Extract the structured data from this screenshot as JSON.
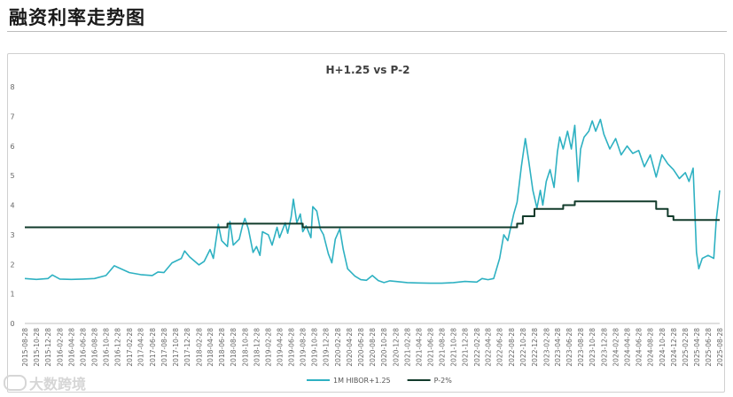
{
  "page": {
    "title": "融资利率走势图"
  },
  "watermark": {
    "text": "大数跨境"
  },
  "chart_data": {
    "type": "line",
    "title": "H+1.25 vs P-2",
    "xlabel": "",
    "ylabel": "",
    "ylim": [
      0,
      8
    ],
    "yticks": [
      0,
      1,
      2,
      3,
      4,
      5,
      6,
      7,
      8
    ],
    "grid": false,
    "legend_position": "bottom-center",
    "x_tick_labels": [
      "2015-08-28",
      "2015-10-28",
      "2015-12-28",
      "2016-02-28",
      "2016-04-28",
      "2016-06-28",
      "2016-08-28",
      "2016-10-28",
      "2016-12-28",
      "2017-02-28",
      "2017-04-28",
      "2017-06-28",
      "2017-08-28",
      "2017-10-28",
      "2017-12-28",
      "2018-02-28",
      "2018-04-28",
      "2018-06-28",
      "2018-08-28",
      "2018-10-28",
      "2018-12-28",
      "2019-02-28",
      "2019-04-28",
      "2019-06-28",
      "2019-08-28",
      "2019-10-28",
      "2019-12-28",
      "2020-02-28",
      "2020-04-28",
      "2020-06-28",
      "2020-08-28",
      "2020-10-28",
      "2020-12-28",
      "2021-02-28",
      "2021-04-28",
      "2021-06-28",
      "2021-08-28",
      "2021-10-28",
      "2021-12-28",
      "2022-02-28",
      "2022-04-28",
      "2022-06-28",
      "2022-08-28",
      "2022-10-28",
      "2022-12-28",
      "2023-02-28",
      "2023-04-28",
      "2023-06-28",
      "2023-08-28",
      "2023-10-28",
      "2023-12-28",
      "2024-02-28",
      "2024-04-28",
      "2024-06-28",
      "2024-08-28",
      "2024-10-28",
      "2024-12-28",
      "2025-02-28",
      "2025-04-28",
      "2025-06-28",
      "2025-08-28"
    ],
    "series": [
      {
        "name": "1M HIBOR+1.25",
        "color": "#2eb1c2",
        "points": [
          [
            "2015-08-28",
            1.52
          ],
          [
            "2015-10-28",
            1.49
          ],
          [
            "2015-12-28",
            1.52
          ],
          [
            "2016-01-20",
            1.64
          ],
          [
            "2016-02-28",
            1.5
          ],
          [
            "2016-04-28",
            1.49
          ],
          [
            "2016-06-28",
            1.5
          ],
          [
            "2016-08-28",
            1.52
          ],
          [
            "2016-10-28",
            1.62
          ],
          [
            "2016-12-10",
            1.95
          ],
          [
            "2016-12-28",
            1.9
          ],
          [
            "2017-02-28",
            1.72
          ],
          [
            "2017-04-28",
            1.65
          ],
          [
            "2017-06-28",
            1.62
          ],
          [
            "2017-07-28",
            1.74
          ],
          [
            "2017-08-28",
            1.72
          ],
          [
            "2017-10-10",
            2.05
          ],
          [
            "2017-11-28",
            2.2
          ],
          [
            "2017-12-15",
            2.45
          ],
          [
            "2018-01-10",
            2.25
          ],
          [
            "2018-02-28",
            1.98
          ],
          [
            "2018-03-28",
            2.1
          ],
          [
            "2018-04-28",
            2.5
          ],
          [
            "2018-05-15",
            2.2
          ],
          [
            "2018-06-10",
            3.35
          ],
          [
            "2018-06-28",
            2.8
          ],
          [
            "2018-07-28",
            2.6
          ],
          [
            "2018-08-10",
            3.45
          ],
          [
            "2018-08-28",
            2.65
          ],
          [
            "2018-09-28",
            2.85
          ],
          [
            "2018-10-15",
            3.3
          ],
          [
            "2018-10-28",
            3.55
          ],
          [
            "2018-11-15",
            3.2
          ],
          [
            "2018-12-10",
            2.4
          ],
          [
            "2018-12-28",
            2.6
          ],
          [
            "2019-01-15",
            2.3
          ],
          [
            "2019-01-28",
            3.1
          ],
          [
            "2019-02-28",
            3.0
          ],
          [
            "2019-03-20",
            2.65
          ],
          [
            "2019-04-15",
            3.25
          ],
          [
            "2019-04-28",
            2.9
          ],
          [
            "2019-05-28",
            3.4
          ],
          [
            "2019-06-10",
            3.05
          ],
          [
            "2019-06-28",
            3.6
          ],
          [
            "2019-07-10",
            4.2
          ],
          [
            "2019-07-28",
            3.4
          ],
          [
            "2019-08-15",
            3.7
          ],
          [
            "2019-08-28",
            3.1
          ],
          [
            "2019-09-15",
            3.3
          ],
          [
            "2019-10-10",
            2.9
          ],
          [
            "2019-10-20",
            3.95
          ],
          [
            "2019-11-10",
            3.8
          ],
          [
            "2019-11-28",
            3.2
          ],
          [
            "2019-12-15",
            3.0
          ],
          [
            "2020-01-10",
            2.35
          ],
          [
            "2020-01-28",
            2.05
          ],
          [
            "2020-02-15",
            2.85
          ],
          [
            "2020-03-10",
            3.2
          ],
          [
            "2020-03-28",
            2.5
          ],
          [
            "2020-04-20",
            1.85
          ],
          [
            "2020-05-28",
            1.6
          ],
          [
            "2020-06-28",
            1.48
          ],
          [
            "2020-07-28",
            1.46
          ],
          [
            "2020-08-28",
            1.62
          ],
          [
            "2020-09-28",
            1.45
          ],
          [
            "2020-10-28",
            1.38
          ],
          [
            "2020-11-28",
            1.44
          ],
          [
            "2020-12-28",
            1.42
          ],
          [
            "2021-02-28",
            1.38
          ],
          [
            "2021-04-28",
            1.37
          ],
          [
            "2021-06-28",
            1.36
          ],
          [
            "2021-08-28",
            1.36
          ],
          [
            "2021-10-28",
            1.38
          ],
          [
            "2021-12-28",
            1.42
          ],
          [
            "2022-02-28",
            1.4
          ],
          [
            "2022-03-28",
            1.52
          ],
          [
            "2022-04-28",
            1.48
          ],
          [
            "2022-05-28",
            1.52
          ],
          [
            "2022-06-28",
            2.2
          ],
          [
            "2022-07-20",
            3.0
          ],
          [
            "2022-08-10",
            2.8
          ],
          [
            "2022-09-10",
            3.7
          ],
          [
            "2022-09-28",
            4.1
          ],
          [
            "2022-10-20",
            5.3
          ],
          [
            "2022-11-10",
            6.25
          ],
          [
            "2022-11-28",
            5.5
          ],
          [
            "2022-12-20",
            4.5
          ],
          [
            "2023-01-10",
            3.9
          ],
          [
            "2023-01-28",
            4.5
          ],
          [
            "2023-02-10",
            4.0
          ],
          [
            "2023-02-28",
            4.8
          ],
          [
            "2023-03-20",
            5.2
          ],
          [
            "2023-04-10",
            4.6
          ],
          [
            "2023-04-28",
            5.8
          ],
          [
            "2023-05-10",
            6.3
          ],
          [
            "2023-05-28",
            5.9
          ],
          [
            "2023-06-20",
            6.5
          ],
          [
            "2023-07-10",
            5.9
          ],
          [
            "2023-07-28",
            6.7
          ],
          [
            "2023-08-15",
            4.8
          ],
          [
            "2023-08-28",
            5.9
          ],
          [
            "2023-09-15",
            6.3
          ],
          [
            "2023-10-10",
            6.5
          ],
          [
            "2023-10-28",
            6.85
          ],
          [
            "2023-11-15",
            6.5
          ],
          [
            "2023-12-10",
            6.9
          ],
          [
            "2023-12-28",
            6.4
          ],
          [
            "2024-01-28",
            5.9
          ],
          [
            "2024-02-28",
            6.25
          ],
          [
            "2024-03-28",
            5.7
          ],
          [
            "2024-04-28",
            6.0
          ],
          [
            "2024-05-28",
            5.75
          ],
          [
            "2024-06-28",
            5.85
          ],
          [
            "2024-07-28",
            5.3
          ],
          [
            "2024-08-28",
            5.7
          ],
          [
            "2024-09-28",
            4.95
          ],
          [
            "2024-10-28",
            5.7
          ],
          [
            "2024-11-28",
            5.4
          ],
          [
            "2024-12-28",
            5.2
          ],
          [
            "2025-01-28",
            4.9
          ],
          [
            "2025-02-28",
            5.1
          ],
          [
            "2025-03-20",
            4.8
          ],
          [
            "2025-04-10",
            5.25
          ],
          [
            "2025-04-28",
            2.4
          ],
          [
            "2025-05-10",
            1.85
          ],
          [
            "2025-05-28",
            2.2
          ],
          [
            "2025-06-28",
            2.3
          ],
          [
            "2025-07-28",
            2.2
          ],
          [
            "2025-08-10",
            3.5
          ],
          [
            "2025-08-28",
            4.5
          ]
        ]
      },
      {
        "name": "P-2%",
        "color": "#123b2b",
        "points": [
          [
            "2015-08-28",
            3.25
          ],
          [
            "2018-07-28",
            3.25
          ],
          [
            "2018-07-28",
            3.375
          ],
          [
            "2019-08-28",
            3.375
          ],
          [
            "2019-08-28",
            3.25
          ],
          [
            "2022-06-28",
            3.25
          ],
          [
            "2022-09-28",
            3.25
          ],
          [
            "2022-09-28",
            3.375
          ],
          [
            "2022-10-28",
            3.375
          ],
          [
            "2022-10-28",
            3.625
          ],
          [
            "2022-12-28",
            3.625
          ],
          [
            "2022-12-28",
            3.875
          ],
          [
            "2023-05-28",
            3.875
          ],
          [
            "2023-05-28",
            4.0
          ],
          [
            "2023-07-28",
            4.0
          ],
          [
            "2023-07-28",
            4.125
          ],
          [
            "2024-09-28",
            4.125
          ],
          [
            "2024-09-28",
            3.875
          ],
          [
            "2024-11-28",
            3.875
          ],
          [
            "2024-11-28",
            3.625
          ],
          [
            "2024-12-28",
            3.625
          ],
          [
            "2024-12-28",
            3.5
          ],
          [
            "2025-08-28",
            3.5
          ]
        ]
      }
    ]
  }
}
